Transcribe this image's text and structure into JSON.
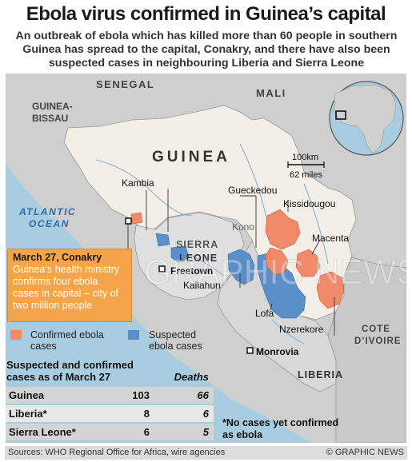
{
  "header": {
    "title": "Ebola virus confirmed in Guinea’s capital",
    "subtitle": "An outbreak of ebola which has killed more than 60 people in southern Guinea has spread to the capital, Conakry, and there have also been suspected cases in neighbouring Liberia and Sierra Leone"
  },
  "map": {
    "countries": {
      "senegal": "SENEGAL",
      "mali": "MALI",
      "guinea_bissau": "GUINEA-BISSAU",
      "guinea": "GUINEA",
      "sierra_leone_1": "SIERRA",
      "sierra_leone_2": "LEONE",
      "liberia": "LIBERIA",
      "cote_divoire_1": "COTE",
      "cote_divoire_2": "D’IVOIRE"
    },
    "ocean": {
      "line1": "ATLANTIC",
      "line2": "OCEAN"
    },
    "places": {
      "kambia": "Kambia",
      "gueckedou": "Gueckedou",
      "kissidougou": "Kissidougou",
      "kono": "Kono",
      "macenta": "Macenta",
      "freetown": "Freetown",
      "kailahun": "Kailahun",
      "lofa": "Lofa",
      "nzerekore": "Nzerekore",
      "monrovia": "Monrovia"
    },
    "scale": {
      "km": "100km",
      "miles": "62 miles"
    },
    "watermark": "GRAPHIC NEWS"
  },
  "colors": {
    "confirmed": "#f08a6a",
    "suspected": "#5b8fc9",
    "guinea_land": "#f3efe6",
    "neighbour_land": "#cfcfcf",
    "sea": "#a9cde0",
    "callout": "#f5a44a"
  },
  "callout": {
    "heading": "March 27, Conakry",
    "text": "Guinea’s health ministry confirms four ebola cases in capital – city of two million people"
  },
  "legend": {
    "confirmed": "Confirmed ebola cases",
    "suspected": "Suspected ebola cases"
  },
  "table": {
    "title": "Suspected and confirmed cases as of March 27",
    "deaths_header": "Deaths",
    "rows": [
      {
        "country": "Guinea",
        "cases": "103",
        "deaths": "66"
      },
      {
        "country": "Liberia*",
        "cases": "8",
        "deaths": "6"
      },
      {
        "country": "Sierra Leone*",
        "cases": "6",
        "deaths": "5"
      }
    ]
  },
  "note": "*No cases yet confirmed as ebola",
  "footer": {
    "sources": "Sources: WHO Regional Office for Africa, wire agencies",
    "copyright": "© GRAPHIC NEWS"
  }
}
